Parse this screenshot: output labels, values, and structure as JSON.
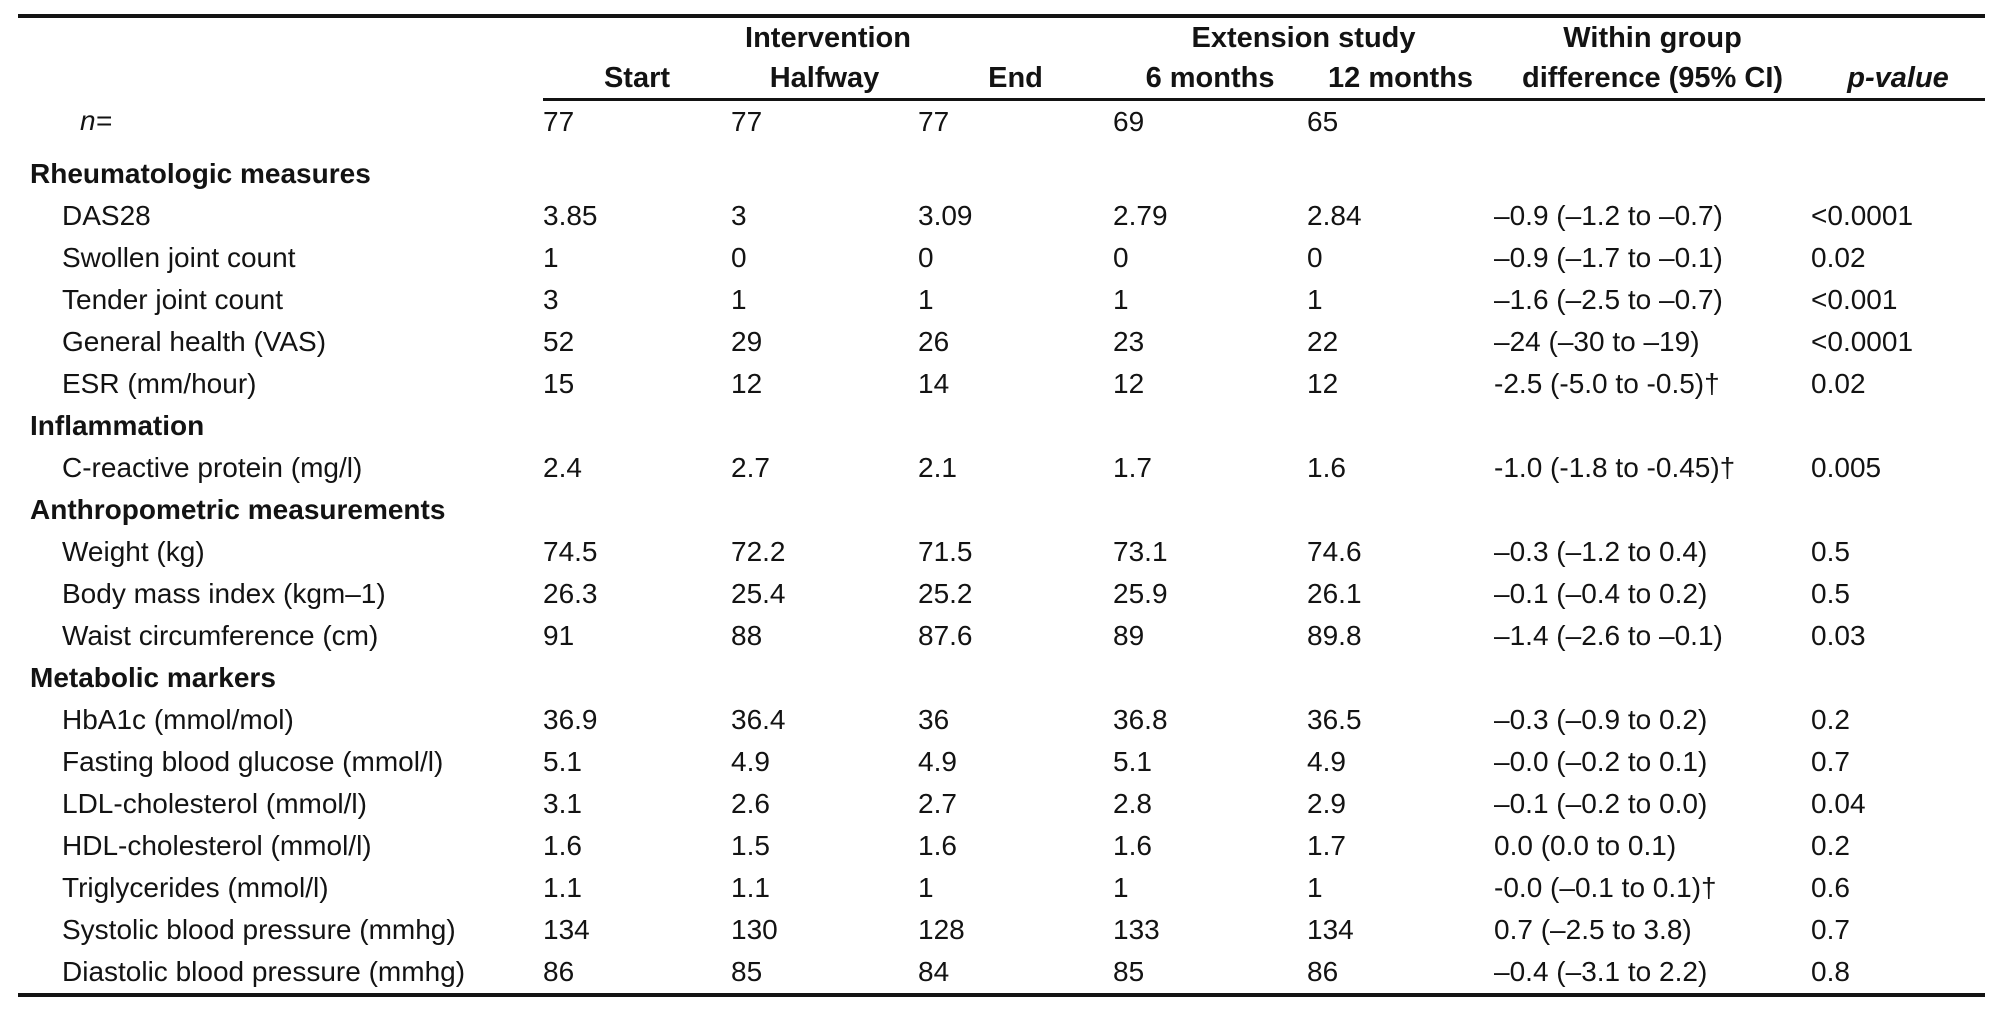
{
  "table": {
    "group_headers": {
      "intervention": "Intervention",
      "extension": "Extension study",
      "within_group_line1": "Within group",
      "within_group_line2": "difference (95% CI)",
      "p_value": "p-value"
    },
    "column_headers": {
      "start": "Start",
      "halfway": "Halfway",
      "end": "End",
      "six_months": "6 months",
      "twelve_months": "12 months"
    },
    "n_row": {
      "label": "n=",
      "values": [
        "77",
        "77",
        "77",
        "69",
        "65"
      ],
      "diff": "",
      "p": ""
    },
    "sections": [
      {
        "title": "Rheumatologic measures",
        "rows": [
          {
            "label": "DAS28",
            "values": [
              "3.85",
              "3",
              "3.09",
              "2.79",
              "2.84"
            ],
            "diff": "–0.9 (–1.2 to –0.7)",
            "p": "<0.0001"
          },
          {
            "label": "Swollen joint count",
            "values": [
              "1",
              "0",
              "0",
              "0",
              "0"
            ],
            "diff": "–0.9 (–1.7 to –0.1)",
            "p": "0.02"
          },
          {
            "label": "Tender joint count",
            "values": [
              "3",
              "1",
              "1",
              "1",
              "1"
            ],
            "diff": "–1.6 (–2.5 to –0.7)",
            "p": "<0.001"
          },
          {
            "label": "General health (VAS)",
            "values": [
              "52",
              "29",
              "26",
              "23",
              "22"
            ],
            "diff": "–24 (–30 to –19)",
            "p": "<0.0001"
          },
          {
            "label": "ESR (mm/hour)",
            "values": [
              "15",
              "12",
              "14",
              "12",
              "12"
            ],
            "diff": "-2.5 (-5.0 to -0.5)†",
            "p": "0.02"
          }
        ]
      },
      {
        "title": "Inflammation",
        "rows": [
          {
            "label": "C-reactive protein (mg/l)",
            "values": [
              "2.4",
              "2.7",
              "2.1",
              "1.7",
              "1.6"
            ],
            "diff": "-1.0 (-1.8 to -0.45)†",
            "p": "0.005"
          }
        ]
      },
      {
        "title": "Anthropometric measurements",
        "rows": [
          {
            "label": "Weight (kg)",
            "values": [
              "74.5",
              "72.2",
              "71.5",
              "73.1",
              "74.6"
            ],
            "diff": "–0.3 (–1.2 to 0.4)",
            "p": "0.5"
          },
          {
            "label": "Body mass index (kgm–1)",
            "values": [
              "26.3",
              "25.4",
              "25.2",
              "25.9",
              "26.1"
            ],
            "diff": "–0.1 (–0.4 to 0.2)",
            "p": "0.5"
          },
          {
            "label": "Waist circumference (cm)",
            "values": [
              "91",
              "88",
              "87.6",
              "89",
              "89.8"
            ],
            "diff": "–1.4 (–2.6 to –0.1)",
            "p": "0.03"
          }
        ]
      },
      {
        "title": "Metabolic markers",
        "rows": [
          {
            "label": "HbA1c (mmol/mol)",
            "values": [
              "36.9",
              "36.4",
              "36",
              "36.8",
              "36.5"
            ],
            "diff": "–0.3 (–0.9 to 0.2)",
            "p": "0.2"
          },
          {
            "label": "Fasting blood glucose (mmol/l)",
            "values": [
              "5.1",
              "4.9",
              "4.9",
              "5.1",
              "4.9"
            ],
            "diff": "–0.0 (–0.2 to 0.1)",
            "p": "0.7"
          },
          {
            "label": "LDL-cholesterol (mmol/l)",
            "values": [
              "3.1",
              "2.6",
              "2.7",
              "2.8",
              "2.9"
            ],
            "diff": "–0.1 (–0.2 to 0.0)",
            "p": "0.04"
          },
          {
            "label": "HDL-cholesterol (mmol/l)",
            "values": [
              "1.6",
              "1.5",
              "1.6",
              "1.6",
              "1.7"
            ],
            "diff": "0.0 (0.0 to 0.1)",
            "p": "0.2"
          },
          {
            "label": "Triglycerides (mmol/l)",
            "values": [
              "1.1",
              "1.1",
              "1",
              "1",
              "1"
            ],
            "diff": "-0.0 (–0.1 to 0.1)†",
            "p": "0.6"
          },
          {
            "label": "Systolic blood pressure (mmhg)",
            "values": [
              "134",
              "130",
              "128",
              "133",
              "134"
            ],
            "diff": "0.7 (–2.5 to 3.8)",
            "p": "0.7"
          },
          {
            "label": "Diastolic blood pressure (mmhg)",
            "values": [
              "86",
              "85",
              "84",
              "85",
              "86"
            ],
            "diff": "–0.4 (–3.1 to 2.2)",
            "p": "0.8"
          }
        ]
      }
    ]
  }
}
